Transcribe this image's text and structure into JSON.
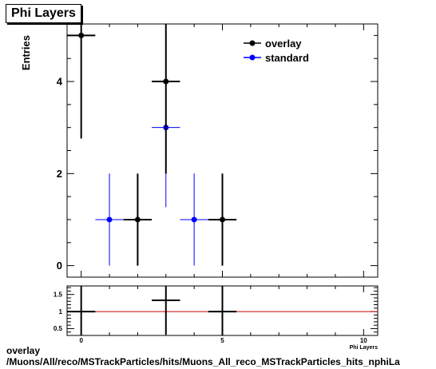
{
  "chart_data": [
    {
      "type": "scatter",
      "title": "Phi Layers",
      "ylabel": "Entries",
      "xlabel": "Phi Layers",
      "xlim": [
        -0.5,
        10.5
      ],
      "ylim": [
        -0.25,
        5.25
      ],
      "x_ticks": [
        0,
        5,
        10
      ],
      "y_ticks": [
        0,
        2,
        4
      ],
      "grid": false,
      "legend_position": "top-right",
      "series": [
        {
          "name": "overlay",
          "color": "#000000",
          "points": [
            {
              "x": 0,
              "y": 5,
              "err": 2.24
            },
            {
              "x": 2,
              "y": 1,
              "err": 1
            },
            {
              "x": 3,
              "y": 4,
              "err": 2
            },
            {
              "x": 5,
              "y": 1,
              "err": 1
            }
          ]
        },
        {
          "name": "standard",
          "color": "#0000ff",
          "points": [
            {
              "x": 1,
              "y": 1,
              "err": 1
            },
            {
              "x": 3,
              "y": 3,
              "err": 1.73
            },
            {
              "x": 4,
              "y": 1,
              "err": 1
            }
          ]
        }
      ]
    },
    {
      "type": "scatter",
      "title": "",
      "xlim": [
        -0.5,
        10.5
      ],
      "ylim": [
        0.3,
        1.75
      ],
      "x_ticks": [
        0,
        5,
        10
      ],
      "y_ticks": [
        0.5,
        1,
        1.5
      ],
      "reference_line": {
        "y": 1,
        "color": "#cc0000"
      },
      "points": [
        {
          "x": 0,
          "y": 1,
          "err": 1
        },
        {
          "x": 3,
          "y": 1.33,
          "err": 1
        },
        {
          "x": 5,
          "y": 1,
          "err": 1.4
        }
      ]
    }
  ],
  "legend": [
    {
      "label": "overlay",
      "color": "#000000"
    },
    {
      "label": "standard",
      "color": "#0000ff"
    }
  ],
  "footer": {
    "line1": "overlay",
    "line2": "/Muons/All/reco/MSTrackParticles/hits/Muons_All_reco_MSTrackParticles_hits_nphiLa"
  }
}
